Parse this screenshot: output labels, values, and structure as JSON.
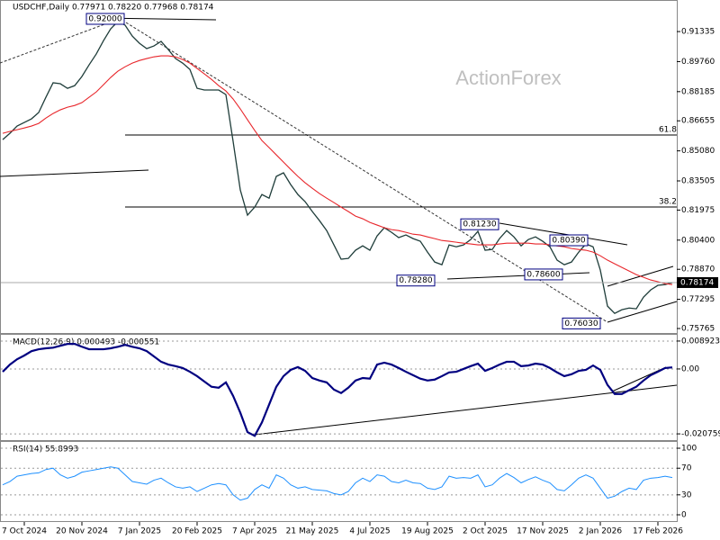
{
  "watermark": "ActionForex",
  "chart_data": [
    {
      "type": "line",
      "title": "USDCHF,Daily 0.77971 0.78220 0.77968 0.78174",
      "categories": [
        null,
        null,
        null,
        "7 Oct 2024",
        null,
        null,
        null,
        null,
        null,
        null,
        null,
        "20 Nov 2024",
        null,
        null,
        null,
        null,
        null,
        null,
        null,
        "7 Jan 2025",
        null,
        null,
        null,
        null,
        null,
        null,
        null,
        "20 Feb 2025",
        null,
        null,
        null,
        null,
        null,
        null,
        null,
        "7 Apr 2025",
        null,
        null,
        null,
        null,
        null,
        null,
        null,
        "21 May 2025",
        null,
        null,
        null,
        null,
        null,
        null,
        null,
        "4 Jul 2025",
        null,
        null,
        null,
        null,
        null,
        null,
        null,
        "19 Aug 2025",
        null,
        null,
        null,
        null,
        null,
        null,
        null,
        "2 Oct 2025",
        null,
        null,
        null,
        null,
        null,
        null,
        null,
        "17 Nov 2025",
        null,
        null,
        null,
        null,
        null,
        null,
        null,
        "2 Jan 2026",
        null,
        null,
        null,
        null,
        null,
        null,
        null,
        "17 Feb 2026",
        null,
        null
      ],
      "series": [
        {
          "color": "#1f3d3a",
          "values": [
            0.8567,
            0.86,
            0.8638,
            0.8657,
            0.8676,
            0.8709,
            0.8789,
            0.8865,
            0.886,
            0.8836,
            0.885,
            0.8898,
            0.8959,
            0.9016,
            0.9086,
            0.9148,
            0.9186,
            0.9167,
            0.911,
            0.9072,
            0.9044,
            0.9058,
            0.9082,
            0.9039,
            0.8992,
            0.8968,
            0.8935,
            0.8836,
            0.8827,
            0.8827,
            0.8827,
            0.8803,
            0.8558,
            0.8303,
            0.8171,
            0.8213,
            0.8279,
            0.826,
            0.8374,
            0.8393,
            0.8331,
            0.8279,
            0.8242,
            0.819,
            0.8142,
            0.809,
            0.8015,
            0.794,
            0.7944,
            0.7987,
            0.801,
            0.7987,
            0.8062,
            0.8105,
            0.8081,
            0.8053,
            0.8067,
            0.8048,
            0.8034,
            0.7977,
            0.7925,
            0.7911,
            0.8015,
            0.8005,
            0.8015,
            0.8043,
            0.8086,
            0.7987,
            0.7991,
            0.8048,
            0.809,
            0.8057,
            0.801,
            0.8043,
            0.8057,
            0.8034,
            0.8005,
            0.7935,
            0.7911,
            0.7925,
            0.7977,
            0.802,
            0.8005,
            0.7883,
            0.7694,
            0.7656,
            0.7675,
            0.7684,
            0.768,
            0.7741,
            0.7779,
            0.7803,
            0.7807,
            0.7817
          ]
        },
        {
          "color": "#e8262b",
          "values": [
            0.86,
            0.861,
            0.8619,
            0.8628,
            0.8638,
            0.8652,
            0.868,
            0.8704,
            0.8723,
            0.8737,
            0.8746,
            0.8761,
            0.8789,
            0.8817,
            0.8855,
            0.8893,
            0.8926,
            0.8949,
            0.8968,
            0.8982,
            0.8992,
            0.9001,
            0.9006,
            0.9006,
            0.9001,
            0.8987,
            0.8968,
            0.894,
            0.8912,
            0.8883,
            0.885,
            0.8822,
            0.878,
            0.8728,
            0.8671,
            0.8615,
            0.8562,
            0.8525,
            0.8487,
            0.8449,
            0.8411,
            0.8374,
            0.8341,
            0.8312,
            0.8284,
            0.826,
            0.8237,
            0.8213,
            0.819,
            0.8166,
            0.8152,
            0.8133,
            0.8119,
            0.8105,
            0.8095,
            0.809,
            0.8081,
            0.8071,
            0.8067,
            0.8057,
            0.8048,
            0.8038,
            0.8034,
            0.8029,
            0.8024,
            0.802,
            0.8015,
            0.8015,
            0.8015,
            0.802,
            0.8024,
            0.8024,
            0.8024,
            0.8024,
            0.802,
            0.802,
            0.8015,
            0.801,
            0.8005,
            0.7996,
            0.7991,
            0.7987,
            0.7977,
            0.7958,
            0.7935,
            0.7916,
            0.7897,
            0.7878,
            0.7859,
            0.7845,
            0.7831,
            0.7822,
            0.7812,
            0.7807
          ]
        }
      ],
      "ylim": [
        0.7553,
        0.9299
      ],
      "yticks": [
        0.91335,
        {
          "value": 0.8976,
          "label": "0.89760"
        },
        0.88185,
        0.86655,
        {
          "value": 0.8508,
          "label": "0.85080"
        },
        0.83505,
        0.81975,
        {
          "value": 0.804,
          "label": "0.80400"
        },
        {
          "value": 0.7887,
          "label": "0.78870"
        },
        0.77295,
        0.75765
      ],
      "grid": false,
      "last": {
        "value": 0.78174,
        "label": "0.78174"
      },
      "annotations": [
        {
          "value": 0.92,
          "label": "0.92000"
        },
        {
          "value": 0.8123,
          "label": "0.81230"
        },
        {
          "value": 0.8039,
          "label": "0.80390"
        },
        {
          "value": 0.786,
          "label": "0.78600"
        },
        {
          "value": 0.7828,
          "label": "0.78280"
        },
        {
          "value": 0.7603,
          "label": "0.76030"
        }
      ],
      "fib_labels": [
        "61.8",
        "38.2"
      ]
    },
    {
      "type": "line",
      "title": "MACD(12,26,9) 0.000493 -0.000551",
      "series": [
        {
          "color": "#000080",
          "values": [
            -0.0009,
            0.0014,
            0.0031,
            0.0043,
            0.0057,
            0.0063,
            0.0066,
            0.0068,
            0.0074,
            0.008,
            0.008,
            0.0071,
            0.0063,
            0.0063,
            0.0063,
            0.0066,
            0.0071,
            0.0077,
            0.0071,
            0.0066,
            0.0057,
            0.004,
            0.0023,
            0.0014,
            0.0009,
            0.0003,
            -0.0009,
            -0.0023,
            -0.004,
            -0.0057,
            -0.006,
            -0.0043,
            -0.0086,
            -0.014,
            -0.0202,
            -0.0214,
            -0.0171,
            -0.0114,
            -0.0057,
            -0.0023,
            -0.0003,
            0.0006,
            -0.0006,
            -0.0029,
            -0.0037,
            -0.0043,
            -0.0066,
            -0.0077,
            -0.006,
            -0.0037,
            -0.0029,
            -0.0031,
            0.0014,
            0.002,
            0.0014,
            0.0003,
            -0.0009,
            -0.002,
            -0.0031,
            -0.0037,
            -0.0034,
            -0.0023,
            -0.0011,
            -0.0009,
            0,
            0.0009,
            0.0017,
            -0.0006,
            0.0003,
            0.0014,
            0.0023,
            0.0023,
            0.0009,
            0.0011,
            0.0017,
            0.0014,
            0.0003,
            -0.0011,
            -0.0023,
            -0.0017,
            -0.0006,
            -0.0003,
            0.0011,
            -0.0003,
            -0.0051,
            -0.008,
            -0.008,
            -0.0068,
            -0.0057,
            -0.0037,
            -0.002,
            -0.0009,
            0.0003,
            0.0005
          ]
        }
      ],
      "ylim": [
        -0.02304,
        0.01092
      ],
      "yticks": [
        0.008923,
        {
          "value": 0,
          "label": "0.00"
        },
        -0.020759
      ],
      "grid": true
    },
    {
      "type": "line",
      "title": "RSI(14) 55.8993",
      "series": [
        {
          "color": "#1e90ff",
          "values": [
            45,
            50,
            58,
            60,
            62,
            63,
            68,
            70,
            60,
            55,
            58,
            64,
            66,
            68,
            70,
            72,
            70,
            60,
            50,
            48,
            46,
            52,
            55,
            48,
            42,
            40,
            42,
            35,
            40,
            45,
            47,
            45,
            30,
            22,
            25,
            38,
            45,
            40,
            60,
            55,
            45,
            40,
            42,
            38,
            37,
            36,
            32,
            30,
            35,
            48,
            55,
            50,
            60,
            58,
            50,
            48,
            52,
            48,
            47,
            40,
            38,
            42,
            58,
            55,
            56,
            55,
            60,
            42,
            45,
            55,
            62,
            56,
            48,
            53,
            57,
            52,
            48,
            38,
            36,
            45,
            55,
            60,
            55,
            40,
            25,
            28,
            35,
            40,
            38,
            52,
            55,
            56,
            58,
            56
          ]
        }
      ],
      "ylim": [
        -10.8,
        109.5
      ],
      "yticks": [
        100,
        70,
        30,
        0
      ],
      "grid": true
    }
  ]
}
